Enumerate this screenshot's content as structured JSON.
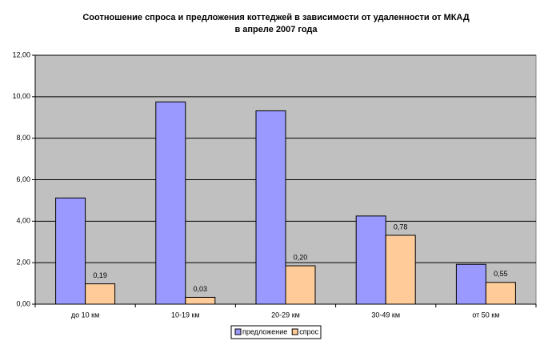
{
  "chart_data": {
    "type": "bar",
    "title": "Соотношение спроса и предложения коттеджей в зависимости от удаленности от МКАД",
    "subtitle": "в апреле 2007 года",
    "categories": [
      "до 10 км",
      "10-19 км",
      "20-29 км",
      "30-49 км",
      "от 50 км"
    ],
    "series": [
      {
        "name": "предложение",
        "color": "#9999ff",
        "values": [
          5.12,
          9.75,
          9.32,
          4.25,
          1.92
        ]
      },
      {
        "name": "спрос",
        "color": "#ffcc99",
        "values": [
          0.98,
          0.33,
          1.85,
          3.32,
          1.05
        ]
      }
    ],
    "annotations": [
      "0,19",
      "0,03",
      "0,20",
      "0,78",
      "0,55"
    ],
    "ylim": [
      0,
      12
    ],
    "yticks": [
      {
        "value": 0,
        "label": "0,00"
      },
      {
        "value": 2,
        "label": "2,00"
      },
      {
        "value": 4,
        "label": "4,00"
      },
      {
        "value": 6,
        "label": "6,00"
      },
      {
        "value": 8,
        "label": "8,00"
      },
      {
        "value": 10,
        "label": "10,00"
      },
      {
        "value": 12,
        "label": "12,00"
      }
    ],
    "grid": true,
    "legend": "bottom"
  }
}
